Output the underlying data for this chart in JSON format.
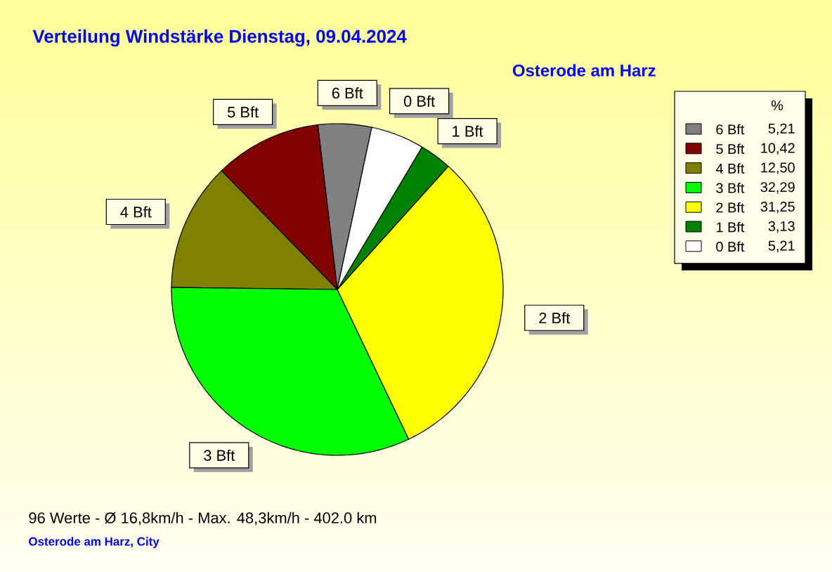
{
  "chart_data": {
    "type": "pie",
    "title": "Verteilung Windstärke Dienstag, 09.04.2024",
    "subtitle": "Osterode am Harz",
    "legend_title": "%",
    "legend": "right",
    "categories": [
      "6 Bft",
      "5 Bft",
      "4 Bft",
      "3 Bft",
      "2 Bft",
      "1 Bft",
      "0 Bft"
    ],
    "values": [
      5.21,
      10.42,
      12.5,
      32.29,
      31.25,
      3.13,
      5.21
    ],
    "value_labels": [
      "5,21",
      "10,42",
      "12,50",
      "32,29",
      "31,25",
      "3,13",
      "5,21"
    ],
    "colors": [
      "#808080",
      "#800000",
      "#808000",
      "#00ff00",
      "#ffff00",
      "#008000",
      "#ffffff"
    ],
    "annotations": [
      "96 Werte - Ø 16,8km/h - Max. 48,3km/h - 402.0 km",
      "Osterode am Harz, City"
    ]
  }
}
